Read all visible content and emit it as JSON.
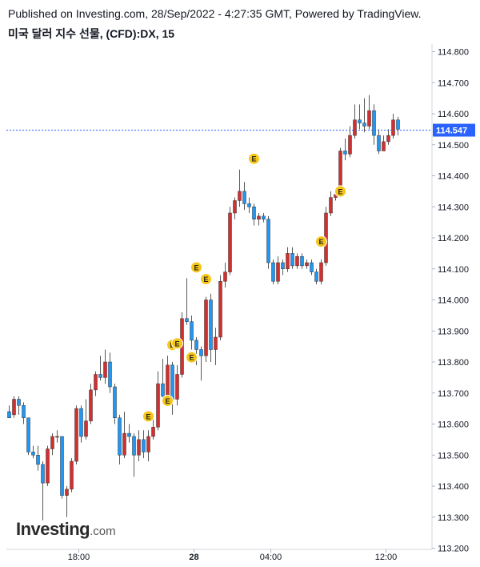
{
  "header": {
    "published": "Published on Investing.com, 28/Sep/2022 - 4:27:35 GMT, Powered by TradingView.",
    "symbol": "미국 달러 지수 선물, (CFD):DX, 15"
  },
  "logo": {
    "main": "Investing",
    "suffix": ".com"
  },
  "colors": {
    "up": "#d32f2f",
    "down": "#2196f3",
    "wick": "#5a5a5a",
    "last_price": "#2962ff",
    "event": "#f5c518"
  },
  "chart_data": {
    "type": "candlestick",
    "y_axis": {
      "min": 113.2,
      "max": 114.8,
      "ticks": [
        "114.800",
        "114.700",
        "114.600",
        "114.500",
        "114.400",
        "114.300",
        "114.200",
        "114.100",
        "114.000",
        "113.900",
        "113.800",
        "113.700",
        "113.600",
        "113.500",
        "113.400",
        "113.300",
        "113.200"
      ],
      "tick_values": [
        114.8,
        114.7,
        114.6,
        114.5,
        114.4,
        114.3,
        114.2,
        114.1,
        114.0,
        113.9,
        113.8,
        113.7,
        113.6,
        113.5,
        113.4,
        113.3,
        113.2
      ]
    },
    "x_axis": {
      "ticks": [
        {
          "label": "18:00",
          "index": 14.5,
          "bold": false
        },
        {
          "label": "28",
          "index": 38.5,
          "bold": true
        },
        {
          "label": "04:00",
          "index": 54.5,
          "bold": false
        },
        {
          "label": "12:00",
          "index": 78.5,
          "bold": false
        }
      ]
    },
    "last_price": {
      "value": 114.547,
      "label": "114.547"
    },
    "event_marker_label": "E",
    "candles": [
      [
        113.64,
        113.62,
        113.66,
        113.62
      ],
      [
        113.63,
        113.68,
        113.69,
        113.62
      ],
      [
        113.68,
        113.66,
        113.69,
        113.63
      ],
      [
        113.66,
        113.62,
        113.67,
        113.6
      ],
      [
        113.62,
        113.51,
        113.62,
        113.5
      ],
      [
        113.51,
        113.5,
        113.53,
        113.49
      ],
      [
        113.5,
        113.47,
        113.53,
        113.45
      ],
      [
        113.47,
        113.41,
        113.48,
        113.29
      ],
      [
        113.41,
        113.52,
        113.53,
        113.4
      ],
      [
        113.52,
        113.56,
        113.57,
        113.5
      ],
      [
        113.56,
        113.56,
        113.58,
        113.54
      ],
      [
        113.56,
        113.37,
        113.56,
        113.36
      ],
      [
        113.37,
        113.39,
        113.4,
        113.3
      ],
      [
        113.39,
        113.48,
        113.49,
        113.38
      ],
      [
        113.48,
        113.65,
        113.66,
        113.47
      ],
      [
        113.65,
        113.56,
        113.66,
        113.54
      ],
      [
        113.56,
        113.61,
        113.68,
        113.55
      ],
      [
        113.61,
        113.71,
        113.73,
        113.6
      ],
      [
        113.71,
        113.76,
        113.77,
        113.69
      ],
      [
        113.76,
        113.75,
        113.82,
        113.74
      ],
      [
        113.75,
        113.8,
        113.84,
        113.73
      ],
      [
        113.8,
        113.72,
        113.83,
        113.7
      ],
      [
        113.72,
        113.62,
        113.73,
        113.6
      ],
      [
        113.62,
        113.5,
        113.63,
        113.47
      ],
      [
        113.5,
        113.57,
        113.64,
        113.49
      ],
      [
        113.57,
        113.56,
        113.6,
        113.54
      ],
      [
        113.56,
        113.5,
        113.57,
        113.43
      ],
      [
        113.5,
        113.55,
        113.58,
        113.48
      ],
      [
        113.55,
        113.51,
        113.58,
        113.49
      ],
      [
        113.51,
        113.56,
        113.58,
        113.48
      ],
      [
        113.56,
        113.59,
        113.62,
        113.55
      ],
      [
        113.59,
        113.73,
        113.77,
        113.58
      ],
      [
        113.73,
        113.69,
        113.81,
        113.68
      ],
      [
        113.69,
        113.79,
        113.82,
        113.68
      ],
      [
        113.79,
        113.68,
        113.8,
        113.63
      ],
      [
        113.68,
        113.76,
        113.79,
        113.66
      ],
      [
        113.76,
        113.94,
        113.96,
        113.75
      ],
      [
        113.94,
        113.93,
        114.07,
        113.92
      ],
      [
        113.93,
        113.87,
        113.95,
        113.84
      ],
      [
        113.87,
        113.84,
        113.88,
        113.79
      ],
      [
        113.84,
        113.82,
        113.85,
        113.74
      ],
      [
        113.82,
        114.0,
        114.01,
        113.8
      ],
      [
        114.0,
        113.84,
        114.02,
        113.8
      ],
      [
        113.84,
        113.88,
        113.91,
        113.79
      ],
      [
        113.88,
        114.06,
        114.08,
        113.87
      ],
      [
        114.06,
        114.09,
        114.12,
        114.04
      ],
      [
        114.09,
        114.28,
        114.3,
        114.08
      ],
      [
        114.28,
        114.32,
        114.33,
        114.26
      ],
      [
        114.32,
        114.35,
        114.42,
        114.3
      ],
      [
        114.35,
        114.31,
        114.38,
        114.29
      ],
      [
        114.31,
        114.3,
        114.33,
        114.28
      ],
      [
        114.3,
        114.26,
        114.31,
        114.24
      ],
      [
        114.26,
        114.27,
        114.28,
        114.24
      ],
      [
        114.27,
        114.26,
        114.28,
        114.25
      ],
      [
        114.26,
        114.12,
        114.27,
        114.1
      ],
      [
        114.12,
        114.06,
        114.13,
        114.05
      ],
      [
        114.06,
        114.12,
        114.14,
        114.05
      ],
      [
        114.12,
        114.1,
        114.13,
        114.08
      ],
      [
        114.1,
        114.15,
        114.17,
        114.09
      ],
      [
        114.15,
        114.11,
        114.17,
        114.1
      ],
      [
        114.11,
        114.14,
        114.15,
        114.1
      ],
      [
        114.14,
        114.11,
        114.15,
        114.1
      ],
      [
        114.11,
        114.12,
        114.13,
        114.1
      ],
      [
        114.12,
        114.09,
        114.13,
        114.08
      ],
      [
        114.09,
        114.06,
        114.1,
        114.05
      ],
      [
        114.06,
        114.12,
        114.13,
        114.05
      ],
      [
        114.12,
        114.28,
        114.3,
        114.11
      ],
      [
        114.28,
        114.33,
        114.35,
        114.27
      ],
      [
        114.33,
        114.34,
        114.36,
        114.32
      ],
      [
        114.34,
        114.48,
        114.49,
        114.33
      ],
      [
        114.48,
        114.47,
        114.52,
        114.45
      ],
      [
        114.47,
        114.53,
        114.56,
        114.46
      ],
      [
        114.53,
        114.58,
        114.63,
        114.52
      ],
      [
        114.58,
        114.57,
        114.63,
        114.55
      ],
      [
        114.57,
        114.56,
        114.65,
        114.54
      ],
      [
        114.56,
        114.61,
        114.66,
        114.55
      ],
      [
        114.61,
        114.53,
        114.63,
        114.5
      ],
      [
        114.53,
        114.48,
        114.55,
        114.47
      ],
      [
        114.48,
        114.51,
        114.53,
        114.49
      ],
      [
        114.51,
        114.53,
        114.55,
        114.5
      ],
      [
        114.53,
        114.58,
        114.6,
        114.52
      ],
      [
        114.58,
        114.55,
        114.59,
        114.53
      ]
    ],
    "event_markers": [
      {
        "index": 29,
        "value": 113.625
      },
      {
        "index": 33,
        "value": 113.675
      },
      {
        "index": 34,
        "value": 113.855
      },
      {
        "index": 35,
        "value": 113.86
      },
      {
        "index": 38,
        "value": 113.815
      },
      {
        "index": 39,
        "value": 114.105
      },
      {
        "index": 41,
        "value": 114.067
      },
      {
        "index": 51,
        "value": 114.455
      },
      {
        "index": 65,
        "value": 114.188
      },
      {
        "index": 69,
        "value": 114.35
      }
    ]
  }
}
